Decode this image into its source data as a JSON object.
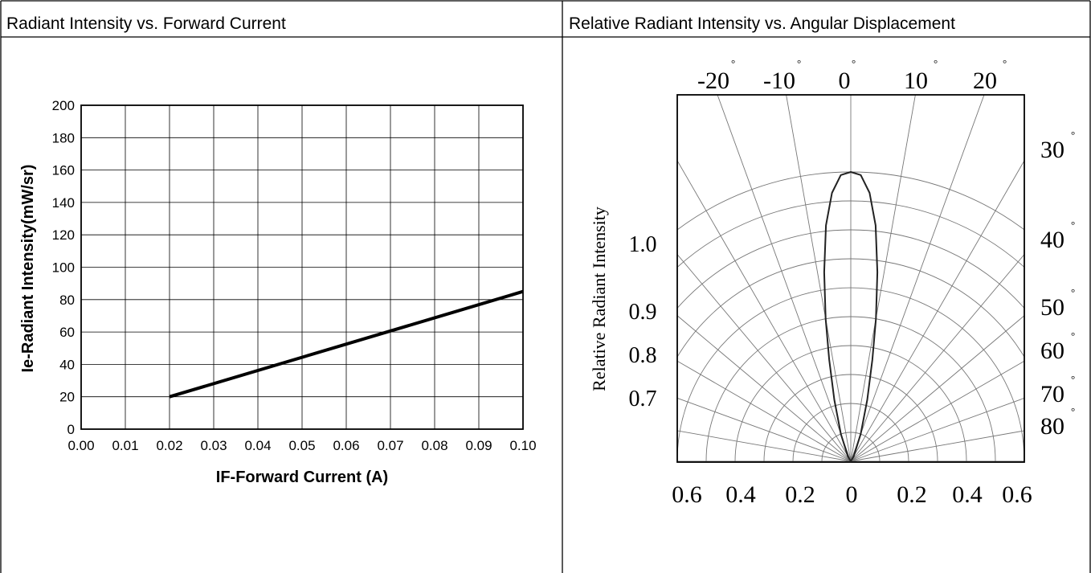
{
  "panels": {
    "left_title": "Radiant Intensity vs. Forward Current",
    "right_title": "Relative Radiant Intensity vs. Angular Displacement"
  },
  "chart_data": [
    {
      "type": "line",
      "title": "Radiant Intensity vs. Forward Current",
      "xlabel": "IF-Forward Current (A)",
      "ylabel": "Ie-Radiant Intensity(mW/sr)",
      "xlim": [
        0.0,
        0.1
      ],
      "ylim": [
        0,
        200
      ],
      "x_ticks": [
        "0.00",
        "0.01",
        "0.02",
        "0.03",
        "0.04",
        "0.05",
        "0.06",
        "0.07",
        "0.08",
        "0.09",
        "0.10"
      ],
      "y_ticks": [
        "0",
        "20",
        "40",
        "60",
        "80",
        "100",
        "120",
        "140",
        "160",
        "180",
        "200"
      ],
      "grid": true,
      "series": [
        {
          "x": [
            0.02,
            0.1
          ],
          "y": [
            20,
            85
          ]
        }
      ]
    },
    {
      "type": "polar",
      "title": "Relative Radiant Intensity vs. Angular Displacement",
      "ylabel": "Relative Radiant Intensity",
      "top_angle_labels": [
        "-20",
        "-10",
        "0",
        "10",
        "20"
      ],
      "right_angle_labels": [
        "30",
        "40",
        "50",
        "60",
        "70",
        "80"
      ],
      "radial_labels": [
        "1.0",
        "0.9",
        "0.8",
        "0.7"
      ],
      "bottom_labels": [
        "0.6",
        "0.4",
        "0.2",
        "0",
        "0.2",
        "0.4",
        "0.6"
      ],
      "degree_symbol": "°",
      "spoke_step_deg": 10,
      "radial_scale_max": 0.6,
      "ring_count": 10,
      "grid": true,
      "series": [
        {
          "angle_deg": [
            -90,
            -30,
            -20,
            -15,
            -12,
            -10,
            -8,
            -6,
            -4,
            -2,
            0,
            2,
            4,
            6,
            8,
            10,
            12,
            15,
            20,
            30,
            90
          ],
          "r": [
            0,
            0.02,
            0.1,
            0.22,
            0.36,
            0.5,
            0.66,
            0.82,
            0.93,
            0.99,
            1.0,
            0.99,
            0.93,
            0.82,
            0.66,
            0.5,
            0.36,
            0.22,
            0.1,
            0.02,
            0
          ]
        }
      ]
    }
  ]
}
